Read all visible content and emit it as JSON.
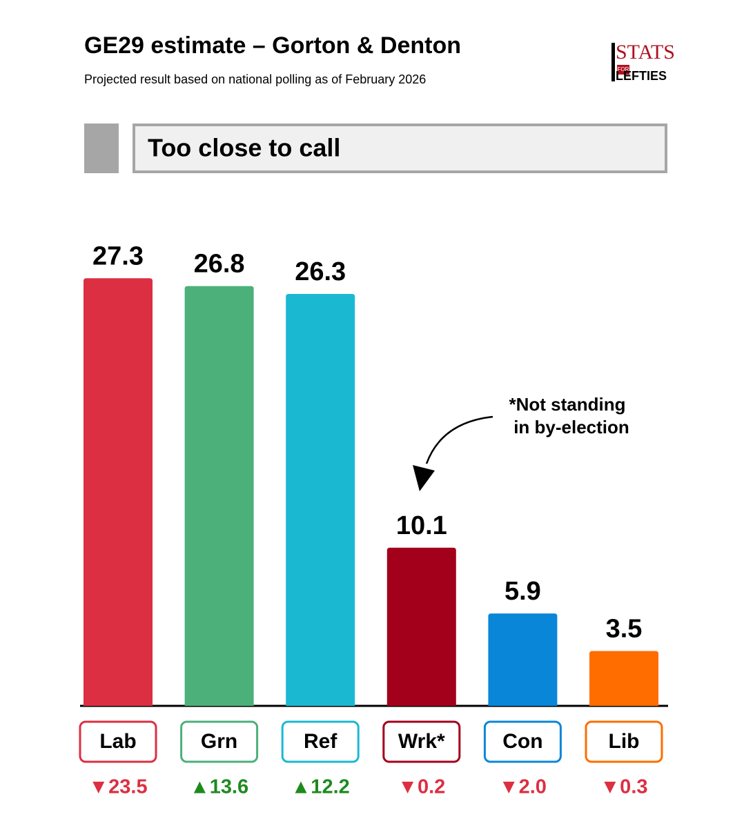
{
  "chart_data": {
    "type": "bar",
    "title": "GE29 estimate – Gorton & Denton",
    "subtitle": "Projected result based on national polling as of February 2026",
    "verdict": "Too close to call",
    "logo": {
      "top": "STATS",
      "middle": "FOR",
      "bottom": "LEFTIES"
    },
    "annotation": [
      "*Not standing",
      "in by-election"
    ],
    "categories": [
      "Lab",
      "Grn",
      "Ref",
      "Wrk*",
      "Con",
      "Lib"
    ],
    "values": [
      27.3,
      26.8,
      26.3,
      10.1,
      5.9,
      3.5
    ],
    "colors": [
      "#dc2f42",
      "#4bb07a",
      "#1bb8d2",
      "#a3001b",
      "#0a86d9",
      "#ff6d00"
    ],
    "changes": [
      -23.5,
      13.6,
      12.2,
      -0.2,
      -2.0,
      -0.3
    ],
    "change_labels": [
      "▼23.5",
      "▲13.6",
      "▲12.2",
      "▼0.2",
      "▼2.0",
      "▼0.3"
    ],
    "change_colors": {
      "up": "#1e8a1e",
      "down": "#dc2f42"
    },
    "ylim": [
      0,
      30
    ]
  }
}
